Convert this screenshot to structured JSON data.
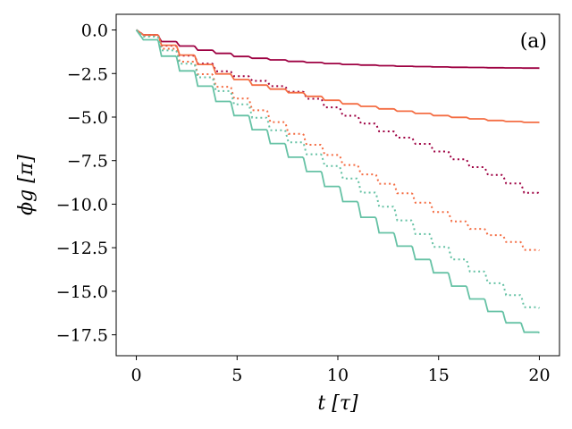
{
  "chart_data": {
    "type": "line",
    "panel_label": "(a)",
    "xlabel": "t [τ]",
    "ylabel": "ϕg [π]",
    "xlim": [
      -1,
      21
    ],
    "ylim": [
      -18.7,
      0.9
    ],
    "xticks": [
      0,
      5,
      10,
      15,
      20
    ],
    "yticks": [
      0.0,
      -2.5,
      -5.0,
      -7.5,
      -10.0,
      -12.5,
      -15.0,
      -17.5
    ],
    "xtick_labels": [
      "0",
      "5",
      "10",
      "15",
      "20"
    ],
    "ytick_labels": [
      "0.0",
      "−2.5",
      "−5.0",
      "−7.5",
      "−10.0",
      "−12.5",
      "−15.0",
      "−17.5"
    ],
    "grid": false,
    "series": [
      {
        "color": "#9e0142",
        "style": "solid",
        "x": [
          0,
          0.5,
          1.5,
          3,
          5,
          7.5,
          10,
          12.5,
          15,
          17.5,
          20
        ],
        "y": [
          0,
          -0.4,
          -0.75,
          -1.15,
          -1.55,
          -1.8,
          -1.97,
          -2.07,
          -2.13,
          -2.17,
          -2.2
        ]
      },
      {
        "color": "#9e0142",
        "style": "dotted",
        "x": [
          0,
          0.5,
          2,
          4,
          6,
          8,
          10,
          12,
          14,
          16,
          18,
          20
        ],
        "y": [
          0,
          -0.4,
          -1.4,
          -2.4,
          -3.0,
          -3.7,
          -4.8,
          -5.8,
          -6.6,
          -7.6,
          -8.6,
          -9.8
        ]
      },
      {
        "color": "#f46d43",
        "style": "solid",
        "x": [
          0,
          0.5,
          2,
          4,
          6,
          8,
          10,
          12.5,
          15,
          17.5,
          20
        ],
        "y": [
          0,
          -0.4,
          -1.35,
          -2.55,
          -3.25,
          -3.7,
          -4.2,
          -4.6,
          -4.95,
          -5.2,
          -5.35
        ]
      },
      {
        "color": "#f46d43",
        "style": "dotted",
        "x": [
          0,
          0.5,
          2,
          4,
          6,
          8,
          10,
          12,
          14,
          16,
          18,
          20
        ],
        "y": [
          0,
          -0.45,
          -1.7,
          -3.3,
          -4.8,
          -6.3,
          -7.6,
          -8.8,
          -10.0,
          -11.2,
          -12.0,
          -13.0
        ]
      },
      {
        "color": "#66c2a5",
        "style": "solid",
        "x": [
          0,
          0.5,
          2,
          4,
          6,
          8,
          10,
          12,
          14,
          16,
          18,
          20
        ],
        "y": [
          0,
          -0.8,
          -2.2,
          -4.15,
          -5.95,
          -7.7,
          -9.6,
          -11.6,
          -13.3,
          -15.0,
          -16.6,
          -17.8
        ]
      },
      {
        "color": "#66c2a5",
        "style": "dotted",
        "x": [
          0,
          0.5,
          2,
          4,
          6,
          8,
          10,
          12,
          14,
          16,
          18,
          20
        ],
        "y": [
          0,
          -0.55,
          -1.8,
          -3.55,
          -5.25,
          -6.8,
          -8.3,
          -10.1,
          -11.85,
          -13.45,
          -14.95,
          -16.5
        ]
      }
    ]
  }
}
